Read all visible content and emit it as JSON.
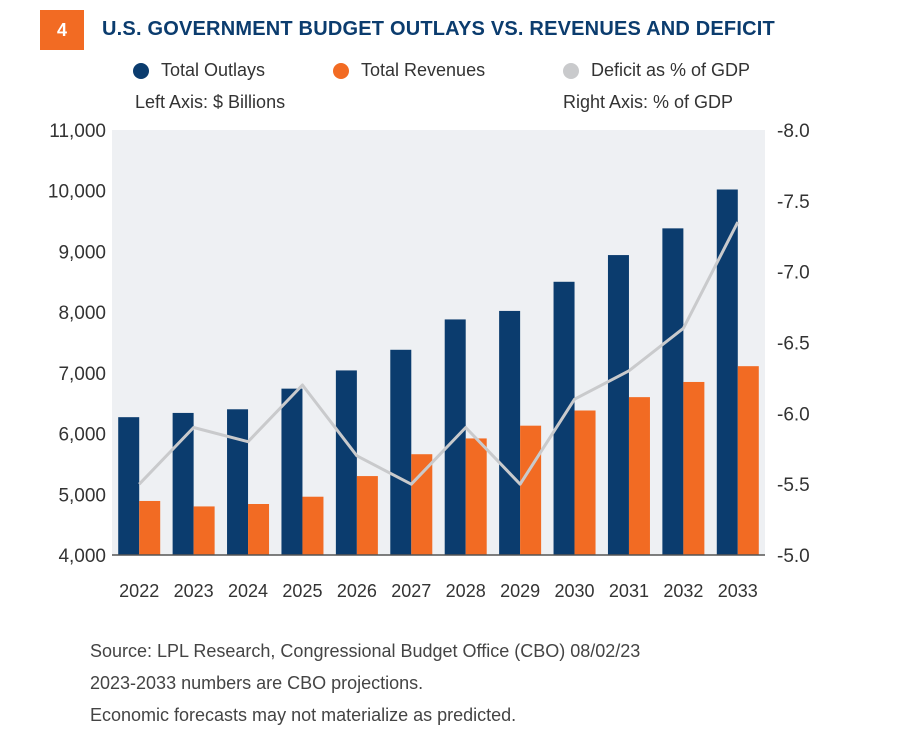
{
  "figure": {
    "number": "4",
    "title": "U.S. GOVERNMENT BUDGET OUTLAYS VS. REVENUES AND DEFICIT"
  },
  "legend": {
    "outlays_label": "Total Outlays",
    "revenues_label": "Total Revenues",
    "deficit_label": "Deficit as % of GDP",
    "left_axis_note": "Left Axis: $ Billions",
    "right_axis_note": "Right Axis: % of GDP"
  },
  "colors": {
    "outlays": "#0b3c6e",
    "revenues": "#f26b23",
    "deficit": "#c9cacc",
    "plot_bg": "#eef0f3",
    "badge": "#f26b23"
  },
  "chart_data": {
    "type": "bar",
    "title": "U.S. GOVERNMENT BUDGET OUTLAYS VS. REVENUES AND DEFICIT",
    "categories": [
      "2022",
      "2023",
      "2024",
      "2025",
      "2026",
      "2027",
      "2028",
      "2029",
      "2030",
      "2031",
      "2032",
      "2033"
    ],
    "series": [
      {
        "name": "Total Outlays",
        "axis": "left",
        "type": "bar",
        "values": [
          6270,
          6340,
          6400,
          6740,
          7040,
          7380,
          7880,
          8020,
          8500,
          8940,
          9380,
          10020
        ]
      },
      {
        "name": "Total Revenues",
        "axis": "left",
        "type": "bar",
        "values": [
          4890,
          4800,
          4840,
          4960,
          5300,
          5660,
          5920,
          6130,
          6380,
          6600,
          6850,
          7110
        ]
      },
      {
        "name": "Deficit as % of GDP",
        "axis": "right",
        "type": "line",
        "values": [
          -5.5,
          -5.9,
          -5.8,
          -6.2,
          -5.7,
          -5.5,
          -5.9,
          -5.5,
          -6.1,
          -6.3,
          -6.6,
          -7.35
        ]
      }
    ],
    "y_left": {
      "min": 4000,
      "max": 11000,
      "ticks": [
        "11,000",
        "10,000",
        "9,000",
        "8,000",
        "7,000",
        "6,000",
        "5,000",
        "4,000"
      ],
      "tick_values": [
        11000,
        10000,
        9000,
        8000,
        7000,
        6000,
        5000,
        4000
      ]
    },
    "y_right": {
      "min": -5.0,
      "max": -8.0,
      "ticks": [
        "-8.0",
        "-7.5",
        "-7.0",
        "-6.5",
        "-6.0",
        "-5.5",
        "-5.0"
      ],
      "tick_values": [
        -8.0,
        -7.5,
        -7.0,
        -6.5,
        -6.0,
        -5.5,
        -5.0
      ]
    },
    "xlabel": "",
    "ylabel": "$ Billions",
    "y2label": "% of GDP"
  },
  "footnotes": [
    "Source: LPL Research, Congressional Budget Office (CBO) 08/02/23",
    "2023-2033 numbers are CBO projections.",
    "Economic forecasts may not materialize as predicted."
  ]
}
